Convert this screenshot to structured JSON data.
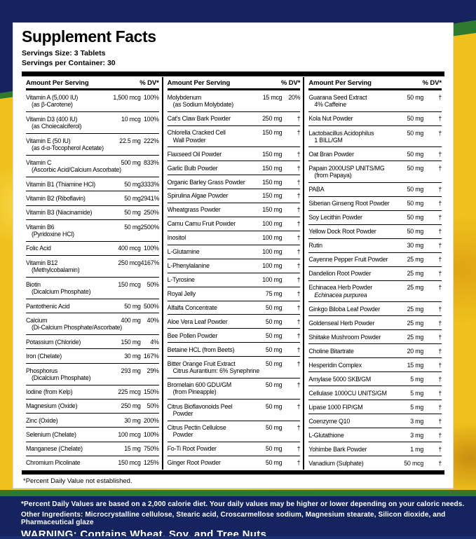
{
  "colors": {
    "navy": "#15245f",
    "green": "#2c7a2f",
    "yellow": "#f0c11d",
    "panel": "#ffffff"
  },
  "label": {
    "title": "Supplement Facts",
    "serving_size": "Servings Size: 3 Tablets",
    "servings_per_container": "Servings per Container: 30",
    "col_header_amount": "Amount Per Serving",
    "col_header_dv": "% DV*",
    "footnote": "*Percent Daily Value not established.",
    "columns": [
      {
        "rows": [
          {
            "name": "Vitamin A (5,000 IU)",
            "sub": "(as β-Carotene)",
            "amount": "1,500 mcg",
            "dv": "100%"
          },
          {
            "name": "Vitamin D3 (400 IU)",
            "sub": "(as Choiecalciferol)",
            "amount": "10 mcg",
            "dv": "100%"
          },
          {
            "name": "Vitamin E (50 IU)",
            "sub": "(as d-α-Tocopherol Acetate)",
            "amount": "22.5 mg",
            "dv": "222%"
          },
          {
            "name": "Vitamin C",
            "sub": "(Ascorbic Acid/Calcium Ascorbate)",
            "amount": "500 mg",
            "dv": "833%"
          },
          {
            "name": "Vitamin B1 (Thiamine HCl)",
            "amount": "50 mg",
            "dv": "3333%"
          },
          {
            "name": "Vitamin B2 (Riboflavin)",
            "amount": "50 mg",
            "dv": "2941%"
          },
          {
            "name": "Vitamin B3 (Niacinamide)",
            "amount": "50 mg",
            "dv": "250%"
          },
          {
            "name": "Vitamin B6",
            "sub": "(Pyridoxine HCl)",
            "amount": "50 mg",
            "dv": "2500%"
          },
          {
            "name": "Folic Acid",
            "amount": "400 mcg",
            "dv": "100%"
          },
          {
            "name": "Vitamin B12",
            "sub": "(Methylcobalamin)",
            "amount": "250 mcg",
            "dv": "4167%"
          },
          {
            "name": "Biotin",
            "sub": "(Dicalcium Phosphate)",
            "amount": "150 mcg",
            "dv": "50%"
          },
          {
            "name": "Pantothenic Acid",
            "amount": "50 mg",
            "dv": "500%"
          },
          {
            "name": "Calcium",
            "sub": "(Di-Calcium Phosphate/Ascorbate)",
            "amount": "400 mg",
            "dv": "40%"
          },
          {
            "name": "Potassium (Chloride)",
            "amount": "150 mg",
            "dv": "4%"
          },
          {
            "name": "Iron (Chelate)",
            "amount": "30 mg",
            "dv": "167%"
          },
          {
            "name": "Phosphorus",
            "sub": "(Dicalcium Phosphate)",
            "amount": "293 mg",
            "dv": "29%"
          },
          {
            "name": "Iodine (from Kelp)",
            "amount": "225 mcg",
            "dv": "150%"
          },
          {
            "name": "Magnesium (Oxide)",
            "amount": "250 mg",
            "dv": "50%"
          },
          {
            "name": "Zinc (Oxide)",
            "amount": "30 mg",
            "dv": "200%"
          },
          {
            "name": "Selenium (Chelate)",
            "amount": "100 mcg",
            "dv": "100%"
          },
          {
            "name": "Manganese (Chelate)",
            "amount": "15 mg",
            "dv": "750%"
          },
          {
            "name": "Chromium Picolinate",
            "amount": "150 mcg",
            "dv": "125%"
          }
        ]
      },
      {
        "rows": [
          {
            "name": "Molybdenum",
            "sub": "(as Sodium Molybdate)",
            "amount": "15 mcg",
            "dv": "20%"
          },
          {
            "name": "Cat's Claw Bark Powder",
            "amount": "250 mg",
            "dv": "†"
          },
          {
            "name": "Chlorella Cracked Cell",
            "sub": "Wall Powder",
            "amount": "150 mg",
            "dv": "†"
          },
          {
            "name": "Flaxseed Oil Powder",
            "amount": "150 mg",
            "dv": "†"
          },
          {
            "name": "Garlic Bulb Powder",
            "amount": "150 mg",
            "dv": "†"
          },
          {
            "name": "Organic Barley Grass Powder",
            "amount": "150 mg",
            "dv": "†"
          },
          {
            "name": "Spirulina Algae Powder",
            "amount": "150 mg",
            "dv": "†"
          },
          {
            "name": "Wheatgrass Powder",
            "amount": "150 mg",
            "dv": "†"
          },
          {
            "name": "Camu Camu Fruit Powder",
            "amount": "100 mg",
            "dv": "†"
          },
          {
            "name": "Inositol",
            "amount": "100 mg",
            "dv": "†"
          },
          {
            "name": "L-Glutamine",
            "amount": "100 mg",
            "dv": "†"
          },
          {
            "name": "L-Phenylalanine",
            "amount": "100 mg",
            "dv": "†"
          },
          {
            "name": "L-Tyrosine",
            "amount": "100 mg",
            "dv": "†"
          },
          {
            "name": "Royal Jelly",
            "amount": "75 mg",
            "dv": "†"
          },
          {
            "name": "Alfalfa Concentrate",
            "amount": "50 mg",
            "dv": "†"
          },
          {
            "name": "Aloe Vera Leaf Powder",
            "amount": "50 mg",
            "dv": "†"
          },
          {
            "name": "Bee Pollen Powder",
            "amount": "50 mg",
            "dv": "†"
          },
          {
            "name": "Betaine HCL (from Beets)",
            "amount": "50 mg",
            "dv": "†"
          },
          {
            "name": "Bitter Orange Fruit Extract",
            "sub": "Citrus Aurantium: 6% Synephrine",
            "amount": "50 mg",
            "dv": "†"
          },
          {
            "name": "Bromelain 600 GDU/GM",
            "sub": "(from Pineapple)",
            "amount": "50 mg",
            "dv": "†"
          },
          {
            "name": "Citrus Bioflavonoids Peel",
            "sub": "Powder",
            "amount": "50 mg",
            "dv": "†"
          },
          {
            "name": "Citrus Pectin Cellulose",
            "sub": "Powder",
            "amount": "50 mg",
            "dv": "†"
          },
          {
            "name": "Fo-Ti Root Powder",
            "amount": "50 mg",
            "dv": "†"
          },
          {
            "name": "Ginger Root Powder",
            "amount": "50 mg",
            "dv": "†"
          }
        ]
      },
      {
        "rows": [
          {
            "name": "Guarana Seed Extract",
            "sub": "4% Caffeine",
            "amount": "50 mg",
            "dv": "†"
          },
          {
            "name": "Kola Nut Powder",
            "amount": "50 mg",
            "dv": "†"
          },
          {
            "name": "Lactobacillus Acidophilus",
            "sub": "1 BILL/GM",
            "amount": "50 mg",
            "dv": "†"
          },
          {
            "name": "Oat Bran Powder",
            "amount": "50 mg",
            "dv": "†"
          },
          {
            "name": "Papain 2000USP UNITS/MG",
            "sub": "(from Papaya)",
            "amount": "50 mg",
            "dv": "†"
          },
          {
            "name": "PABA",
            "amount": "50 mg",
            "dv": "†"
          },
          {
            "name": "Siberian Ginseng Root Powder",
            "amount": "50 mg",
            "dv": "†"
          },
          {
            "name": "Soy Lecithin Powder",
            "amount": "50 mg",
            "dv": "†"
          },
          {
            "name": "Yellow Dock Root Powder",
            "amount": "50 mg",
            "dv": "†"
          },
          {
            "name": "Rutin",
            "amount": "30 mg",
            "dv": "†"
          },
          {
            "name": "Cayenne Pepper Fruit Powder",
            "amount": "25 mg",
            "dv": "†"
          },
          {
            "name": "Dandelion Root Powder",
            "amount": "25 mg",
            "dv": "†"
          },
          {
            "name": "Echinacea Herb Powder",
            "sub": "Echinacea purpurea",
            "sub_italic": true,
            "amount": "25 mg",
            "dv": "†"
          },
          {
            "name": "Ginkgo Biloba Leaf Powder",
            "amount": "25 mg",
            "dv": "†"
          },
          {
            "name": "Goldenseal Herb Powder",
            "amount": "25 mg",
            "dv": "†"
          },
          {
            "name": "Shiitake Mushroom Powder",
            "amount": "25 mg",
            "dv": "†"
          },
          {
            "name": "Choline Bitartrate",
            "amount": "20 mg",
            "dv": "†"
          },
          {
            "name": "Hesperidin Complex",
            "amount": "15 mg",
            "dv": "†"
          },
          {
            "name": "Amylase 5000 SKB/GM",
            "amount": "5 mg",
            "dv": "†"
          },
          {
            "name": "Cellulase 1000CU UNITS/GM",
            "amount": "5 mg",
            "dv": "†"
          },
          {
            "name": "Lipase 1000 FIP/GM",
            "amount": "5 mg",
            "dv": "†"
          },
          {
            "name": "Coenzyme Q10",
            "amount": "3 mg",
            "dv": "†"
          },
          {
            "name": "L-Glutathione",
            "amount": "3 mg",
            "dv": "†"
          },
          {
            "name": "Yohimbe Bark Powder",
            "amount": "1 mg",
            "dv": "†"
          },
          {
            "name": "Vanadium (Sulphate)",
            "amount": "50 mcg",
            "dv": "†"
          }
        ]
      }
    ]
  },
  "footer": {
    "dv_note": "*Percent Daily Values are based on a 2,000 calorie diet. Your daily values may be higher or lower depending on your caloric needs.",
    "other_ingredients": "Other Ingredients: Microcrystalline cellulose, Stearic acid, Croscarmellose sodium, Magnesium stearate, Silicon dioxide, and Pharmaceutical glaze",
    "warning": "WARNING: Contains Wheat, Soy, and Tree Nuts"
  }
}
